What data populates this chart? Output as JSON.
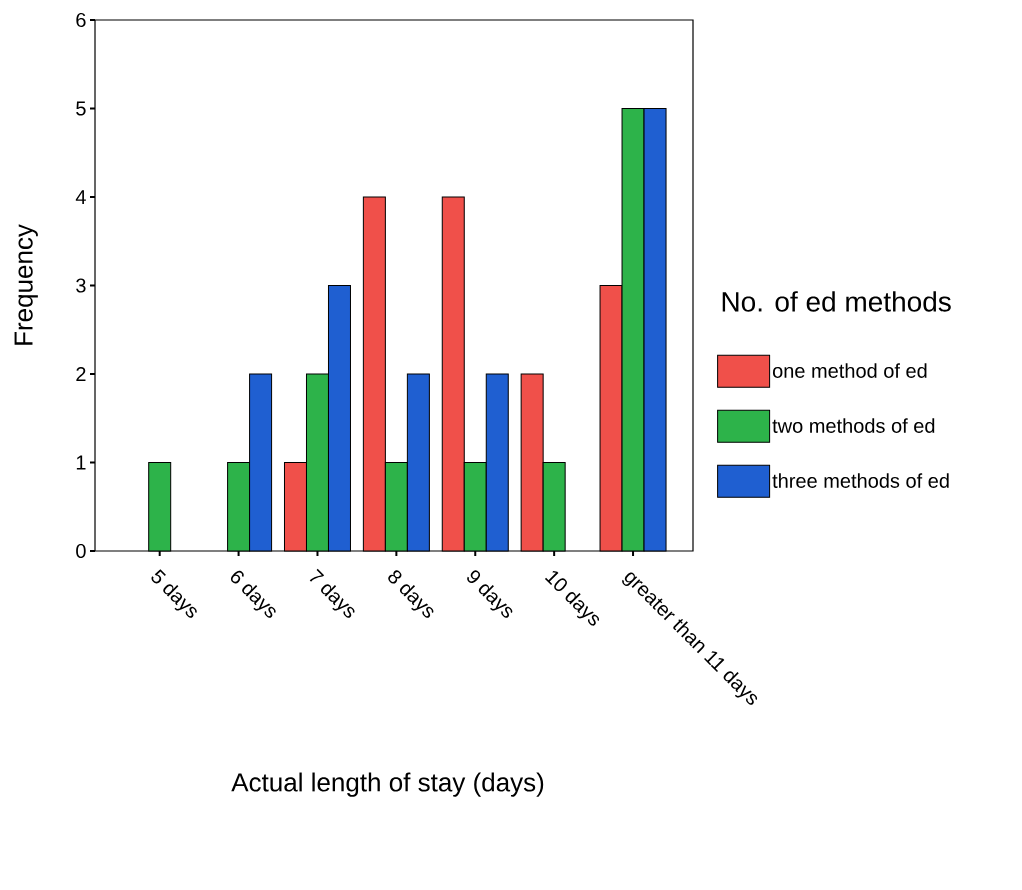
{
  "chart_data": {
    "type": "bar",
    "xlabel": "Actual length of stay (days)",
    "ylabel": "Frequency",
    "legend_title": "No. of  ed  methods",
    "legend": "right",
    "categories": [
      "5 days",
      "6 days",
      "7 days",
      "8 days",
      "9 days",
      "10 days",
      "greater than 11 days"
    ],
    "ylim": [
      0,
      6
    ],
    "yticks": [
      0,
      1,
      2,
      3,
      4,
      5,
      6
    ],
    "series": [
      {
        "name": "one method of ed",
        "color": "#f0504a",
        "values": [
          0,
          0,
          1,
          4,
          4,
          2,
          3
        ]
      },
      {
        "name": "two methods of ed",
        "color": "#2db34a",
        "values": [
          1,
          1,
          2,
          1,
          1,
          1,
          5
        ]
      },
      {
        "name": "three methods of ed",
        "color": "#1f5fd1",
        "values": [
          0,
          2,
          3,
          2,
          2,
          0,
          5
        ]
      }
    ]
  }
}
